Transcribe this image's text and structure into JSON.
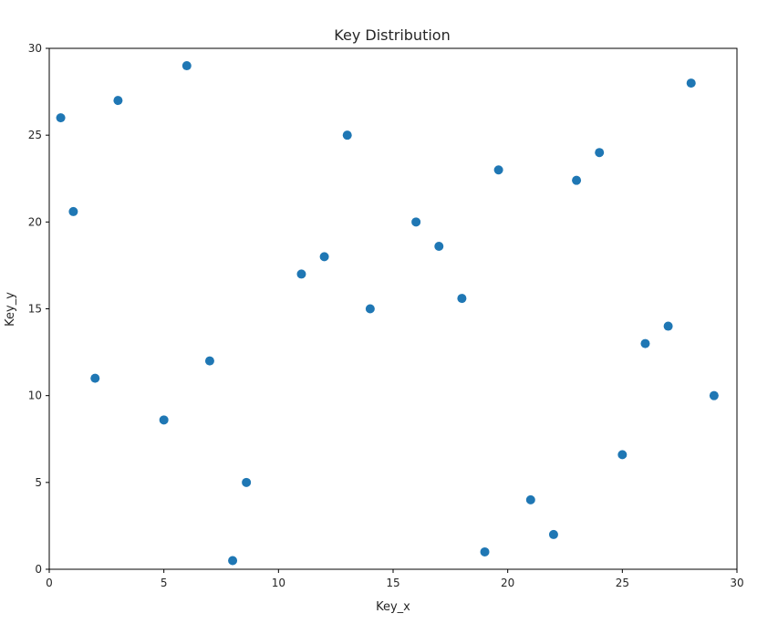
{
  "chart_data": {
    "type": "scatter",
    "title": "Key Distribution",
    "xlabel": "Key_x",
    "ylabel": "Key_y",
    "xlim": [
      0,
      30
    ],
    "ylim": [
      0,
      30
    ],
    "xticks": [
      0,
      5,
      10,
      15,
      20,
      25,
      30
    ],
    "yticks": [
      0,
      5,
      10,
      15,
      20,
      25,
      30
    ],
    "grid": false,
    "color": "#1f77b4",
    "points": [
      {
        "x": 0.5,
        "y": 26
      },
      {
        "x": 1.05,
        "y": 20.6
      },
      {
        "x": 2,
        "y": 11
      },
      {
        "x": 3,
        "y": 27
      },
      {
        "x": 5,
        "y": 8.6
      },
      {
        "x": 6,
        "y": 29
      },
      {
        "x": 7,
        "y": 12
      },
      {
        "x": 8,
        "y": 0.5
      },
      {
        "x": 8.6,
        "y": 5
      },
      {
        "x": 11,
        "y": 17
      },
      {
        "x": 12,
        "y": 18
      },
      {
        "x": 13,
        "y": 25
      },
      {
        "x": 14,
        "y": 15
      },
      {
        "x": 16,
        "y": 20
      },
      {
        "x": 17,
        "y": 18.6
      },
      {
        "x": 18,
        "y": 15.6
      },
      {
        "x": 19,
        "y": 1
      },
      {
        "x": 19.6,
        "y": 23
      },
      {
        "x": 21,
        "y": 4
      },
      {
        "x": 22,
        "y": 2
      },
      {
        "x": 23,
        "y": 22.4
      },
      {
        "x": 24,
        "y": 24
      },
      {
        "x": 25,
        "y": 6.6
      },
      {
        "x": 26,
        "y": 13
      },
      {
        "x": 27,
        "y": 14
      },
      {
        "x": 28,
        "y": 28
      },
      {
        "x": 29,
        "y": 10
      }
    ]
  }
}
